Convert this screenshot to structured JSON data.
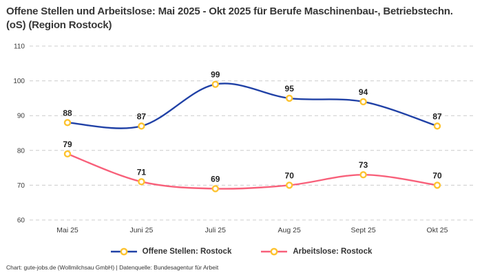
{
  "title": "Offene Stellen und Arbeitslose: Mai 2025 - Okt 2025 für Berufe Maschinenbau-, Betriebstechn.(oS) (Region Rostock)",
  "footer": "Chart: gute-jobs.de (Wollmilchsau GmbH) | Datenquelle: Bundesagentur für Arbeit",
  "chart_data": {
    "type": "line",
    "categories": [
      "Mai 25",
      "Juni 25",
      "Juli 25",
      "Aug 25",
      "Sept 25",
      "Okt 25"
    ],
    "series": [
      {
        "name": "Offene Stellen: Rostock",
        "values": [
          88,
          87,
          99,
          95,
          94,
          87
        ],
        "color": "#2041a6"
      },
      {
        "name": "Arbeitslose: Rostock",
        "values": [
          79,
          71,
          69,
          70,
          73,
          70
        ],
        "color": "#f8607a"
      }
    ],
    "ylim": [
      60,
      110
    ],
    "yticks": [
      60,
      70,
      80,
      90,
      100,
      110
    ],
    "grid": "horizontal-dashed",
    "grid_color": "#cccccc",
    "legend_position": "bottom",
    "marker": {
      "shape": "circle",
      "fill": "#ffffff",
      "stroke": "#fdc330"
    },
    "label_color": "#222222",
    "tick_color": "#3a3a3a",
    "xlabel": "",
    "ylabel": ""
  }
}
